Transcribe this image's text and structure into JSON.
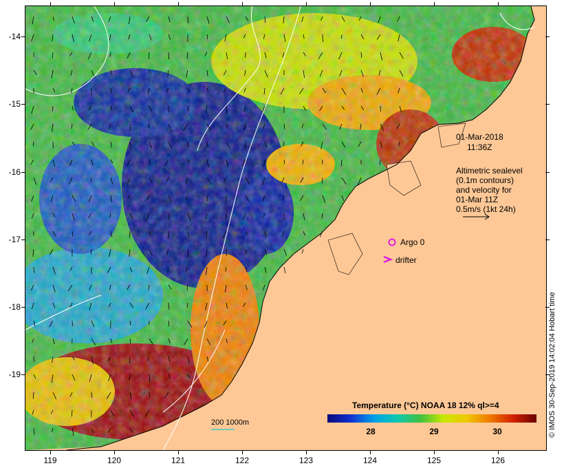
{
  "map": {
    "y_axis_labels": [
      "-14",
      "-15",
      "-16",
      "-17",
      "-18",
      "-19"
    ],
    "x_axis_labels": [
      "119",
      "120",
      "121",
      "122",
      "123",
      "124",
      "125",
      "126"
    ],
    "date": "01-Mar-2018",
    "time": "11:36Z",
    "legend_lines": [
      "Altimetric sealevel",
      "(0.1m contours)",
      "and velocity for",
      "01-Mar 11Z",
      "0.5m/s (1kt 24h)"
    ],
    "argo_label": "Argo 0",
    "drifter_label": "drifter",
    "scale_label": "200  1000m",
    "colorbar_title": "Temperature (°C) NOAA 18 12% ql>=4",
    "colorbar_ticks": [
      "28",
      "29",
      "30"
    ],
    "credit": "© IMOS 30-Sep-2019 14:02:04 Hobart time",
    "colors": {
      "land": "#fdc896",
      "marker": "#e020e0",
      "contour": "#ffffff",
      "scale_line": "#40c8c8"
    }
  }
}
